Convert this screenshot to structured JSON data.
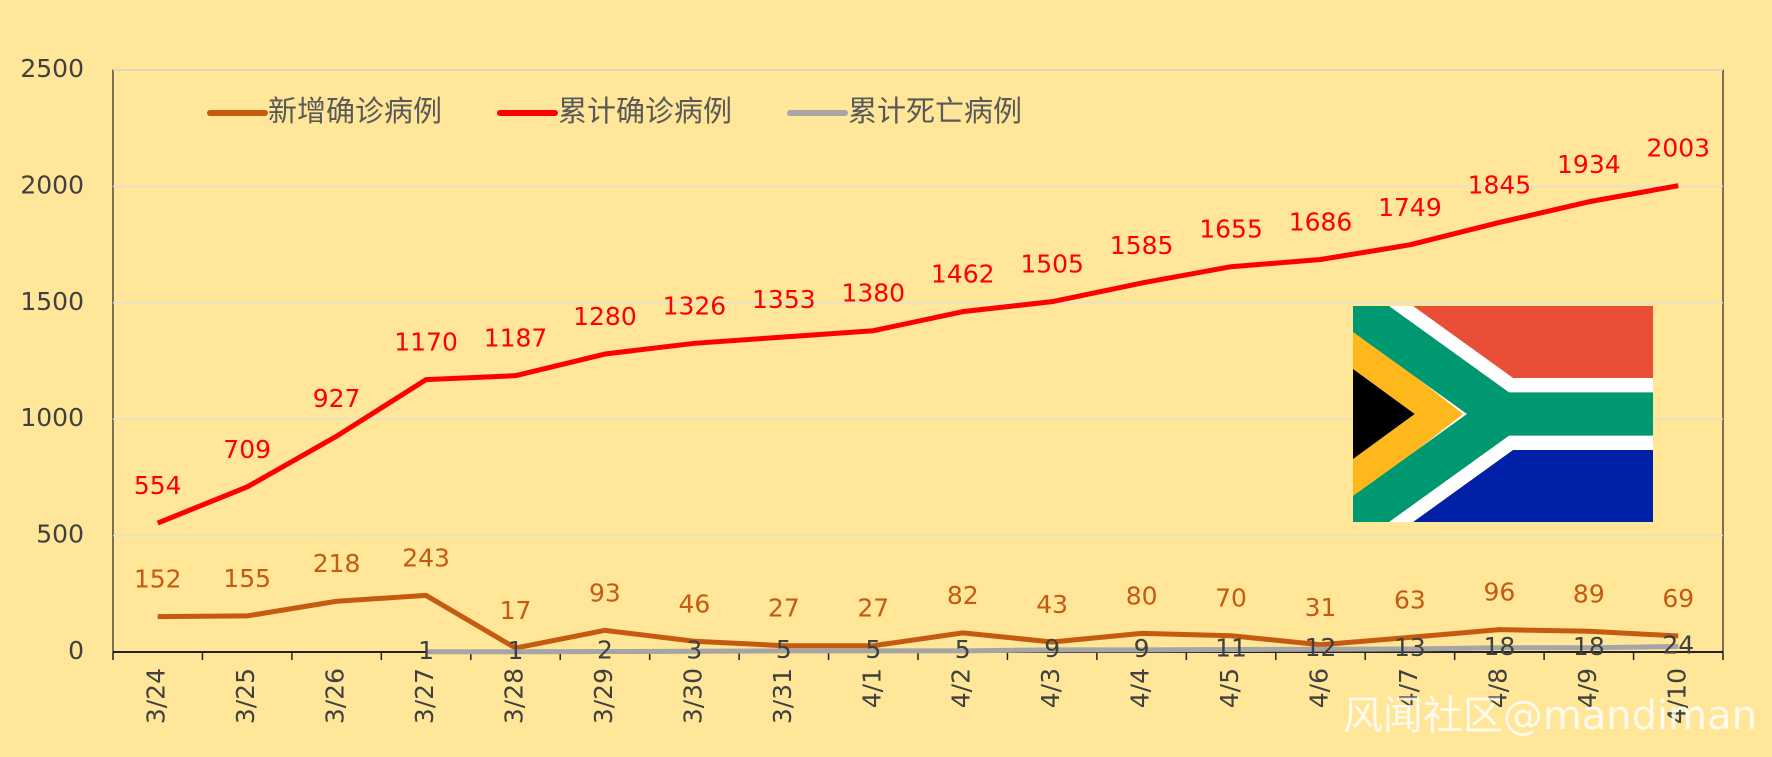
{
  "chart_data": {
    "type": "line",
    "categories": [
      "3/24",
      "3/25",
      "3/26",
      "3/27",
      "3/28",
      "3/29",
      "3/30",
      "3/31",
      "4/1",
      "4/2",
      "4/3",
      "4/4",
      "4/5",
      "4/6",
      "4/7",
      "4/8",
      "4/9",
      "4/10"
    ],
    "series": [
      {
        "name": "新增确诊病例",
        "color": "#C55A11",
        "label_color": "#C55A11",
        "values": [
          152,
          155,
          218,
          243,
          17,
          93,
          46,
          27,
          27,
          82,
          43,
          80,
          70,
          31,
          63,
          96,
          89,
          69
        ]
      },
      {
        "name": "累计确诊病例",
        "color": "#FF0000",
        "label_color": "#FF0000",
        "values": [
          554,
          709,
          927,
          1170,
          1187,
          1280,
          1326,
          1353,
          1380,
          1462,
          1505,
          1585,
          1655,
          1686,
          1749,
          1845,
          1934,
          2003
        ]
      },
      {
        "name": "累计死亡病例",
        "color": "#A5A5A5",
        "label_color": "#404040",
        "values": [
          null,
          null,
          null,
          1,
          1,
          2,
          3,
          5,
          5,
          5,
          9,
          9,
          11,
          12,
          13,
          18,
          18,
          24
        ]
      }
    ],
    "ylim": [
      0,
      2500
    ],
    "yticks": [
      0,
      500,
      1000,
      1500,
      2000,
      2500
    ],
    "grid": true,
    "legend": "top-left",
    "watermark": "风闻社区@mandiman"
  }
}
